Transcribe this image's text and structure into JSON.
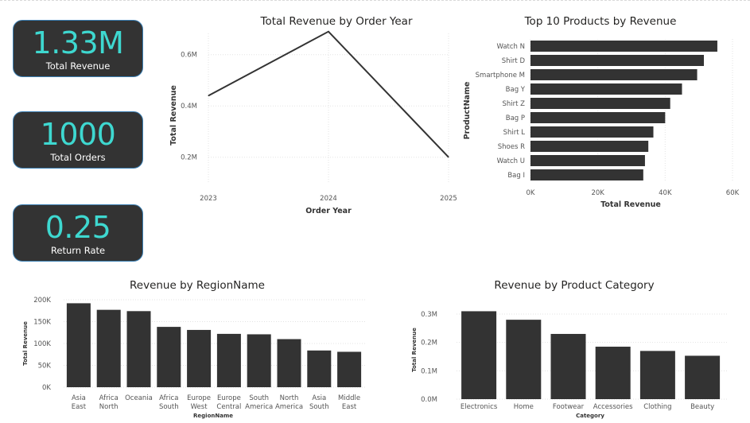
{
  "kpis": {
    "revenue": {
      "value": "1.33M",
      "label": "Total Revenue"
    },
    "orders": {
      "value": "1000",
      "label": "Total Orders"
    },
    "return_rate": {
      "value": "0.25",
      "label": "Return Rate"
    }
  },
  "colors": {
    "bar": "#333333",
    "kpi_value": "#3ed8d0",
    "kpi_bg": "#333333",
    "kpi_border": "#3b7fb3"
  },
  "chart_data": [
    {
      "id": "year",
      "type": "line",
      "title": "Total Revenue by Order Year",
      "xlabel": "Order Year",
      "ylabel": "Total Revenue",
      "x": [
        "2023",
        "2024",
        "2025"
      ],
      "values": [
        0.44,
        0.69,
        0.2
      ],
      "unit": "M",
      "yticks": [
        {
          "v": 0.2,
          "label": "0.2M"
        },
        {
          "v": 0.4,
          "label": "0.4M"
        },
        {
          "v": 0.6,
          "label": "0.6M"
        }
      ],
      "ylim": [
        0.1,
        0.72
      ],
      "grid": true
    },
    {
      "id": "products",
      "type": "bar",
      "orientation": "horizontal",
      "title": "Top 10 Products by Revenue",
      "xlabel": "Total Revenue",
      "ylabel": "ProductName",
      "categories": [
        "Watch N",
        "Shirt D",
        "Smartphone M",
        "Bag Y",
        "Shirt Z",
        "Bag P",
        "Shirt L",
        "Shoes R",
        "Watch U",
        "Bag I"
      ],
      "values": [
        55500,
        51500,
        49500,
        45000,
        41500,
        40000,
        36500,
        35000,
        34000,
        33500
      ],
      "xticks": [
        {
          "v": 0,
          "label": "0K"
        },
        {
          "v": 20000,
          "label": "20K"
        },
        {
          "v": 40000,
          "label": "40K"
        },
        {
          "v": 60000,
          "label": "60K"
        }
      ],
      "xlim": [
        0,
        60000
      ],
      "grid": true
    },
    {
      "id": "region",
      "type": "bar",
      "title": "Revenue by RegionName",
      "xlabel": "RegionName",
      "ylabel": "Total Revenue",
      "categories": [
        [
          "Asia",
          "East"
        ],
        [
          "Africa",
          "North"
        ],
        [
          "Oceania"
        ],
        [
          "Africa",
          "South"
        ],
        [
          "Europe",
          "West"
        ],
        [
          "Europe",
          "Central"
        ],
        [
          "South",
          "America"
        ],
        [
          "North",
          "America"
        ],
        [
          "Asia",
          "South"
        ],
        [
          "Middle",
          "East"
        ]
      ],
      "values": [
        192000,
        177000,
        174000,
        138000,
        131000,
        122000,
        121000,
        110000,
        84000,
        81000
      ],
      "yticks": [
        {
          "v": 0,
          "label": "0K"
        },
        {
          "v": 50000,
          "label": "50K"
        },
        {
          "v": 100000,
          "label": "100K"
        },
        {
          "v": 150000,
          "label": "150K"
        },
        {
          "v": 200000,
          "label": "200K"
        }
      ],
      "ylim": [
        0,
        200000
      ],
      "grid": true
    },
    {
      "id": "category",
      "type": "bar",
      "title": "Revenue by Product Category",
      "xlabel": "Category",
      "ylabel": "Total Revenue",
      "categories": [
        "Electronics",
        "Home",
        "Footwear",
        "Accessories",
        "Clothing",
        "Beauty"
      ],
      "values": [
        0.31,
        0.28,
        0.23,
        0.185,
        0.17,
        0.153
      ],
      "unit": "M",
      "yticks": [
        {
          "v": 0,
          "label": "0.0M"
        },
        {
          "v": 0.1,
          "label": "0.1M"
        },
        {
          "v": 0.2,
          "label": "0.2M"
        },
        {
          "v": 0.3,
          "label": "0.3M"
        }
      ],
      "ylim": [
        0,
        0.3
      ],
      "grid": true
    }
  ]
}
